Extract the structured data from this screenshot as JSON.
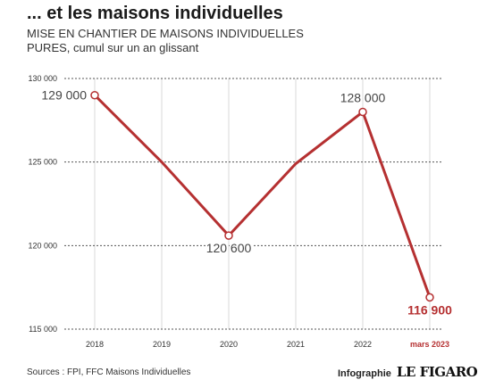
{
  "header": {
    "title": "... et les maisons individuelles",
    "subtitle_line1": "MISE EN CHANTIER DE MAISONS INDIVIDUELLES",
    "subtitle_line2": "PURES, cumul sur un an glissant"
  },
  "footer": {
    "sources": "Sources : FPI, FFC Maisons Individuelles",
    "credit_label": "Infographie",
    "brand": "LE FIGARO"
  },
  "colors": {
    "line": "#b53031",
    "highlight": "#b53031",
    "grid": "#555555",
    "vgrid": "#d9d9d9"
  },
  "chart_data": {
    "type": "line",
    "x": [
      "2018",
      "2019",
      "2020",
      "2021",
      "2022",
      "mars 2023"
    ],
    "values": [
      129000,
      125000,
      120600,
      124900,
      128000,
      116900
    ],
    "y_ticks": [
      {
        "value": 130000,
        "label": "130 000"
      },
      {
        "value": 125000,
        "label": "125 000"
      },
      {
        "value": 120000,
        "label": "120 000"
      },
      {
        "value": 115000,
        "label": "115 000"
      }
    ],
    "ylim": [
      115000,
      130000
    ],
    "grid": true,
    "highlight_last_category": true,
    "annotations": [
      {
        "index": 0,
        "label": "129 000",
        "position": "left"
      },
      {
        "index": 2,
        "label": "120 600",
        "position": "below"
      },
      {
        "index": 4,
        "label": "128 000",
        "position": "above"
      },
      {
        "index": 5,
        "label": "116 900",
        "position": "below",
        "highlight": true
      }
    ]
  }
}
